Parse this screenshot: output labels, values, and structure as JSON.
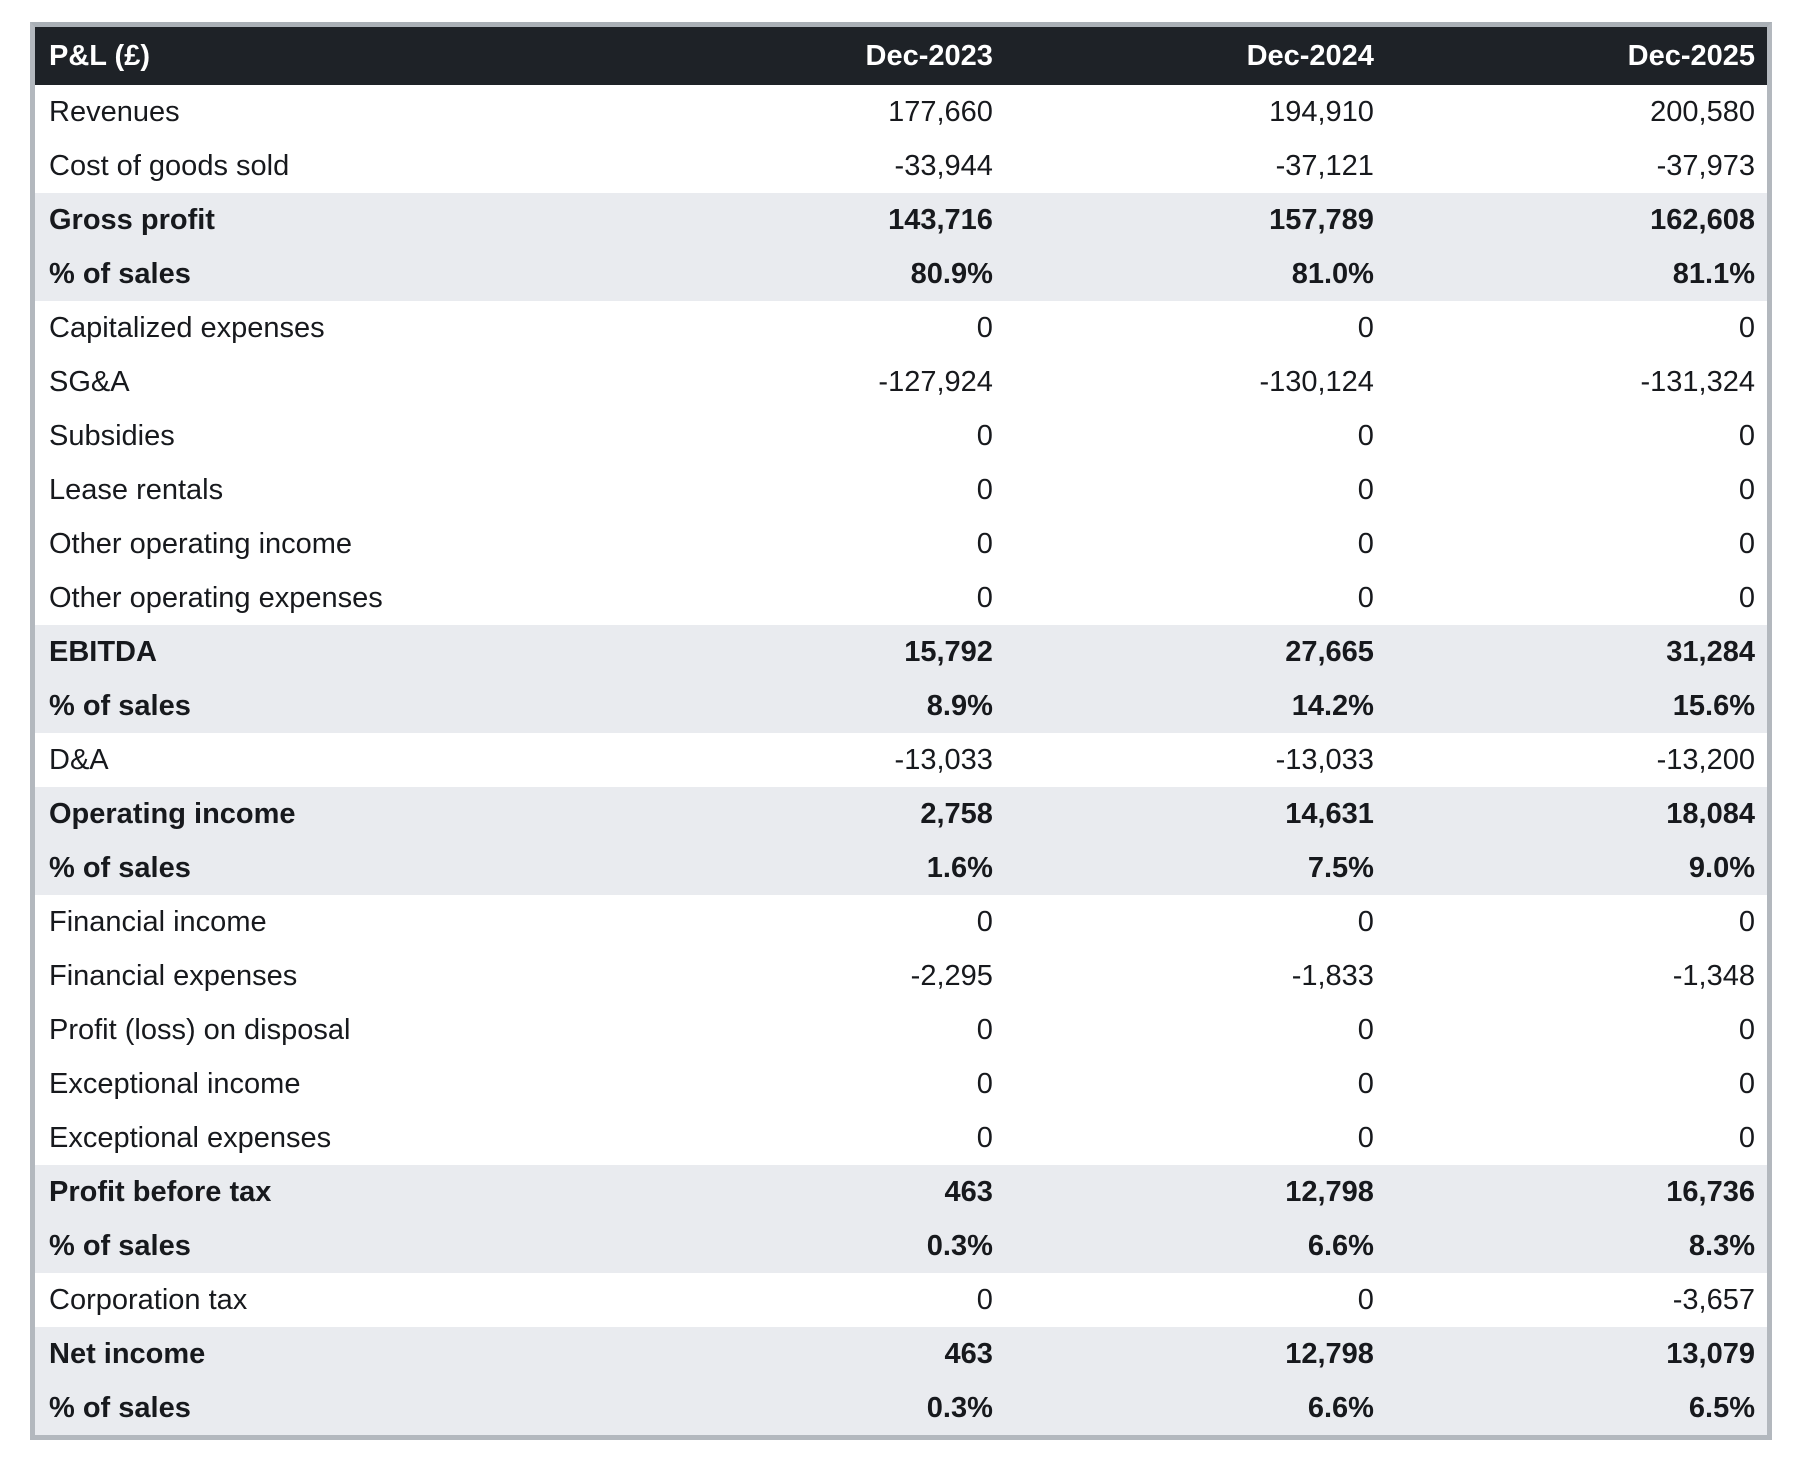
{
  "colors": {
    "header_bg": "#1e2227",
    "header_text": "#ffffff",
    "highlight_row_bg": "#e9ebef",
    "body_text": "#17191d",
    "outer_border": "#b3b8be",
    "page_bg": "#ffffff"
  },
  "chart_data": {
    "type": "table",
    "title": "P&L (£)",
    "currency": "£",
    "columns": [
      "P&L (£)",
      "Dec-2023",
      "Dec-2024",
      "Dec-2025"
    ],
    "rows": [
      {
        "label": "Revenues",
        "values": [
          "177,660",
          "194,910",
          "200,580"
        ],
        "emphasis": false
      },
      {
        "label": "Cost of goods sold",
        "values": [
          "-33,944",
          "-37,121",
          "-37,973"
        ],
        "emphasis": false
      },
      {
        "label": "Gross profit",
        "values": [
          "143,716",
          "157,789",
          "162,608"
        ],
        "emphasis": true
      },
      {
        "label": "% of sales",
        "values": [
          "80.9%",
          "81.0%",
          "81.1%"
        ],
        "emphasis": true
      },
      {
        "label": "Capitalized expenses",
        "values": [
          "0",
          "0",
          "0"
        ],
        "emphasis": false
      },
      {
        "label": "SG&A",
        "values": [
          "-127,924",
          "-130,124",
          "-131,324"
        ],
        "emphasis": false
      },
      {
        "label": "Subsidies",
        "values": [
          "0",
          "0",
          "0"
        ],
        "emphasis": false
      },
      {
        "label": "Lease rentals",
        "values": [
          "0",
          "0",
          "0"
        ],
        "emphasis": false
      },
      {
        "label": "Other operating income",
        "values": [
          "0",
          "0",
          "0"
        ],
        "emphasis": false
      },
      {
        "label": "Other operating expenses",
        "values": [
          "0",
          "0",
          "0"
        ],
        "emphasis": false
      },
      {
        "label": "EBITDA",
        "values": [
          "15,792",
          "27,665",
          "31,284"
        ],
        "emphasis": true
      },
      {
        "label": "% of sales",
        "values": [
          "8.9%",
          "14.2%",
          "15.6%"
        ],
        "emphasis": true
      },
      {
        "label": "D&A",
        "values": [
          "-13,033",
          "-13,033",
          "-13,200"
        ],
        "emphasis": false
      },
      {
        "label": "Operating income",
        "values": [
          "2,758",
          "14,631",
          "18,084"
        ],
        "emphasis": true
      },
      {
        "label": "% of sales",
        "values": [
          "1.6%",
          "7.5%",
          "9.0%"
        ],
        "emphasis": true
      },
      {
        "label": "Financial income",
        "values": [
          "0",
          "0",
          "0"
        ],
        "emphasis": false
      },
      {
        "label": "Financial expenses",
        "values": [
          "-2,295",
          "-1,833",
          "-1,348"
        ],
        "emphasis": false
      },
      {
        "label": "Profit (loss) on disposal",
        "values": [
          "0",
          "0",
          "0"
        ],
        "emphasis": false
      },
      {
        "label": "Exceptional income",
        "values": [
          "0",
          "0",
          "0"
        ],
        "emphasis": false
      },
      {
        "label": "Exceptional expenses",
        "values": [
          "0",
          "0",
          "0"
        ],
        "emphasis": false
      },
      {
        "label": "Profit before tax",
        "values": [
          "463",
          "12,798",
          "16,736"
        ],
        "emphasis": true
      },
      {
        "label": "% of sales",
        "values": [
          "0.3%",
          "6.6%",
          "8.3%"
        ],
        "emphasis": true
      },
      {
        "label": "Corporation tax",
        "values": [
          "0",
          "0",
          "-3,657"
        ],
        "emphasis": false
      },
      {
        "label": "Net income",
        "values": [
          "463",
          "12,798",
          "13,079"
        ],
        "emphasis": true
      },
      {
        "label": "% of sales",
        "values": [
          "0.3%",
          "6.6%",
          "6.5%"
        ],
        "emphasis": true
      }
    ]
  }
}
